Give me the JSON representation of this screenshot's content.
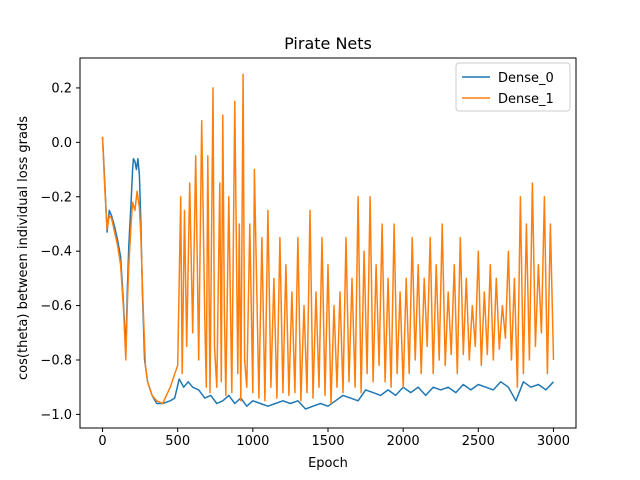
{
  "chart_data": {
    "type": "line",
    "title": "Pirate Nets",
    "xlabel": "Epoch",
    "ylabel": "cos(theta) between individual loss grads",
    "xlim": [
      -150,
      3150
    ],
    "ylim": [
      -1.05,
      0.31
    ],
    "xticks": [
      0,
      500,
      1000,
      1500,
      2000,
      2500,
      3000
    ],
    "xtick_labels": [
      "0",
      "500",
      "1000",
      "1500",
      "2000",
      "2500",
      "3000"
    ],
    "yticks": [
      -1.0,
      -0.8,
      -0.6,
      -0.4,
      -0.2,
      0.0,
      0.2
    ],
    "ytick_labels": [
      "−1.0",
      "−0.8",
      "−0.6",
      "−0.4",
      "−0.2",
      "0.0",
      "0.2"
    ],
    "grid": false,
    "legend": "top-right",
    "series": [
      {
        "name": "Dense_0",
        "color": "#1f77b4",
        "x": [
          0,
          15,
          30,
          45,
          60,
          80,
          100,
          120,
          140,
          155,
          165,
          175,
          190,
          200,
          205,
          215,
          225,
          235,
          245,
          255,
          265,
          280,
          300,
          330,
          360,
          400,
          450,
          480,
          510,
          540,
          570,
          600,
          640,
          680,
          720,
          760,
          800,
          840,
          880,
          920,
          960,
          1000,
          1050,
          1100,
          1150,
          1200,
          1250,
          1300,
          1350,
          1400,
          1450,
          1500,
          1550,
          1600,
          1650,
          1700,
          1750,
          1800,
          1850,
          1900,
          1950,
          2000,
          2050,
          2100,
          2150,
          2200,
          2250,
          2300,
          2350,
          2400,
          2450,
          2500,
          2550,
          2600,
          2650,
          2700,
          2750,
          2800,
          2850,
          2900,
          2950,
          3000
        ],
        "y": [
          0.02,
          -0.15,
          -0.33,
          -0.25,
          -0.27,
          -0.31,
          -0.36,
          -0.42,
          -0.6,
          -0.77,
          -0.55,
          -0.38,
          -0.22,
          -0.1,
          -0.06,
          -0.07,
          -0.1,
          -0.06,
          -0.12,
          -0.3,
          -0.55,
          -0.8,
          -0.88,
          -0.93,
          -0.96,
          -0.96,
          -0.95,
          -0.94,
          -0.87,
          -0.9,
          -0.88,
          -0.9,
          -0.91,
          -0.94,
          -0.93,
          -0.96,
          -0.95,
          -0.93,
          -0.96,
          -0.94,
          -0.97,
          -0.95,
          -0.96,
          -0.97,
          -0.96,
          -0.95,
          -0.96,
          -0.95,
          -0.98,
          -0.97,
          -0.96,
          -0.97,
          -0.95,
          -0.93,
          -0.94,
          -0.95,
          -0.91,
          -0.92,
          -0.93,
          -0.91,
          -0.93,
          -0.9,
          -0.92,
          -0.9,
          -0.93,
          -0.9,
          -0.91,
          -0.9,
          -0.92,
          -0.89,
          -0.91,
          -0.89,
          -0.9,
          -0.91,
          -0.88,
          -0.9,
          -0.95,
          -0.88,
          -0.9,
          -0.89,
          -0.91,
          -0.88
        ]
      },
      {
        "name": "Dense_1",
        "color": "#ff7f0e",
        "x": [
          0,
          15,
          30,
          45,
          60,
          80,
          100,
          120,
          140,
          155,
          165,
          175,
          190,
          200,
          215,
          230,
          245,
          255,
          270,
          285,
          300,
          330,
          360,
          400,
          450,
          500,
          520,
          530,
          545,
          560,
          580,
          600,
          620,
          640,
          660,
          680,
          690,
          700,
          715,
          735,
          745,
          760,
          780,
          790,
          800,
          810,
          820,
          840,
          860,
          880,
          900,
          910,
          920,
          935,
          945,
          960,
          980,
          1000,
          1010,
          1040,
          1060,
          1080,
          1100,
          1120,
          1140,
          1160,
          1180,
          1200,
          1220,
          1240,
          1260,
          1280,
          1300,
          1320,
          1340,
          1360,
          1380,
          1400,
          1420,
          1440,
          1460,
          1480,
          1500,
          1520,
          1540,
          1560,
          1580,
          1600,
          1620,
          1640,
          1660,
          1680,
          1700,
          1720,
          1740,
          1760,
          1780,
          1800,
          1820,
          1840,
          1860,
          1880,
          1900,
          1920,
          1940,
          1960,
          1980,
          2000,
          2020,
          2040,
          2060,
          2080,
          2100,
          2120,
          2140,
          2160,
          2180,
          2200,
          2220,
          2240,
          2260,
          2280,
          2300,
          2320,
          2340,
          2360,
          2380,
          2400,
          2420,
          2440,
          2460,
          2480,
          2500,
          2520,
          2540,
          2560,
          2580,
          2600,
          2620,
          2640,
          2660,
          2680,
          2700,
          2720,
          2740,
          2760,
          2780,
          2800,
          2820,
          2840,
          2860,
          2880,
          2900,
          2920,
          2940,
          2960,
          2980,
          3000
        ],
        "y": [
          0.02,
          -0.17,
          -0.32,
          -0.27,
          -0.28,
          -0.33,
          -0.38,
          -0.45,
          -0.62,
          -0.8,
          -0.6,
          -0.45,
          -0.3,
          -0.22,
          -0.25,
          -0.18,
          -0.24,
          -0.35,
          -0.6,
          -0.82,
          -0.88,
          -0.93,
          -0.95,
          -0.96,
          -0.9,
          -0.82,
          -0.2,
          -0.85,
          -0.25,
          -0.75,
          -0.15,
          -0.7,
          -0.05,
          -0.8,
          0.08,
          -0.65,
          -0.9,
          -0.05,
          -0.92,
          0.2,
          -0.75,
          -0.9,
          -0.15,
          -0.88,
          0.1,
          -0.6,
          -0.93,
          -0.2,
          -0.92,
          0.15,
          -0.85,
          -0.3,
          -0.95,
          0.25,
          -0.8,
          -0.9,
          -0.3,
          -0.92,
          -0.1,
          -0.94,
          -0.35,
          -0.95,
          -0.25,
          -0.9,
          -0.5,
          -0.94,
          -0.35,
          -0.92,
          -0.45,
          -0.93,
          -0.55,
          -0.92,
          -0.35,
          -0.95,
          -0.6,
          -0.92,
          -0.25,
          -0.94,
          -0.55,
          -0.9,
          -0.35,
          -0.93,
          -0.45,
          -0.96,
          -0.6,
          -0.9,
          -0.55,
          -0.92,
          -0.35,
          -0.88,
          -0.5,
          -0.9,
          -0.2,
          -0.92,
          -0.4,
          -0.85,
          -0.2,
          -0.88,
          -0.45,
          -0.82,
          -0.3,
          -0.88,
          -0.5,
          -0.9,
          -0.3,
          -0.85,
          -0.55,
          -0.9,
          -0.5,
          -0.85,
          -0.35,
          -0.8,
          -0.45,
          -0.85,
          -0.5,
          -0.75,
          -0.35,
          -0.85,
          -0.45,
          -0.8,
          -0.3,
          -0.82,
          -0.55,
          -0.78,
          -0.45,
          -0.85,
          -0.35,
          -0.78,
          -0.5,
          -0.8,
          -0.6,
          -0.75,
          -0.4,
          -0.82,
          -0.55,
          -0.78,
          -0.45,
          -0.8,
          -0.5,
          -0.76,
          -0.6,
          -0.72,
          -0.4,
          -0.8,
          -0.5,
          -0.9,
          -0.2,
          -0.85,
          -0.3,
          -0.8,
          -0.15,
          -0.75,
          -0.45,
          -0.7,
          -0.2,
          -0.85,
          -0.3,
          -0.8
        ]
      }
    ]
  }
}
